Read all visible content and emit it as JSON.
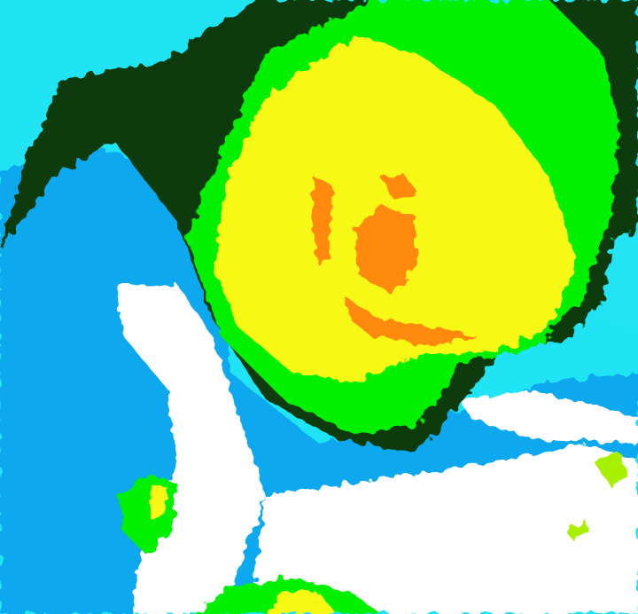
{
  "image": {
    "kind": "color-enhanced satellite image",
    "palette": {
      "background_cyan": "#20e4f4",
      "light_blue": "#0ea8ee",
      "white": "#ffffff",
      "dark_green": "#0c3a08",
      "green": "#00f000",
      "lime": "#a8f000",
      "yellow": "#f8f818",
      "orange": "#ff8a10"
    }
  }
}
